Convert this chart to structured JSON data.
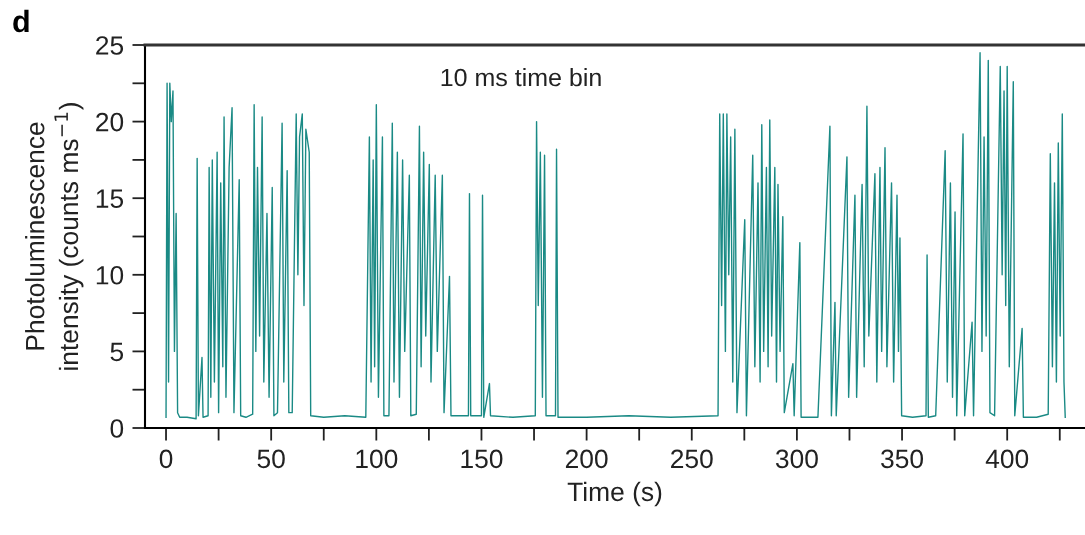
{
  "chart_data": {
    "type": "line",
    "title": "d",
    "xlabel": "Time (s)",
    "ylabel": "Photoluminescence\nintensity (counts ms$^{−1}$)",
    "annotations": [
      "10 ms time bin"
    ],
    "xlim": [
      -10,
      437
    ],
    "ylim": [
      0,
      25
    ],
    "xticks": [
      0,
      {
        "value": 25,
        "label": null
      },
      50,
      {
        "value": 75,
        "label": null
      },
      100,
      {
        "value": 125,
        "label": null
      },
      150,
      {
        "value": 175,
        "label": null
      },
      200,
      {
        "value": 225,
        "label": null
      },
      250,
      {
        "value": 275,
        "label": null
      },
      300,
      {
        "value": 325,
        "label": null
      },
      350,
      {
        "value": 375,
        "label": null
      },
      400,
      {
        "value": 425,
        "label": null
      }
    ],
    "yticks": [
      0,
      {
        "value": 2.5,
        "label": null
      },
      5,
      {
        "value": 7.5,
        "label": null
      },
      10,
      {
        "value": 12.5,
        "label": null
      },
      15,
      {
        "value": 17.5,
        "label": null
      },
      20,
      {
        "value": 22.5,
        "label": null
      },
      25
    ],
    "grid": false,
    "marker": "none",
    "line_style": "solid",
    "series": [
      {
        "color": "#1a8a85",
        "x": [
          0,
          0.5,
          1.2,
          1.8,
          2.5,
          3.3,
          4,
          4.8,
          5.5,
          6.5,
          10,
          14.3,
          14.8,
          15.4,
          17.1,
          17.6,
          20,
          20.5,
          21.3,
          22,
          23,
          24.3,
          25,
          26,
          27,
          27.6,
          28.5,
          30,
          31.4,
          32.3,
          34.8,
          35.5,
          38,
          41.2,
          41.9,
          42.7,
          43.5,
          44.5,
          45.7,
          46.5,
          48,
          49,
          50.5,
          51.3,
          53,
          55.2,
          56,
          57.6,
          58.4,
          60,
          61.9,
          62.7,
          63.5,
          64.8,
          65.6,
          66.5,
          68.1,
          68.8,
          75,
          85,
          95,
          96.7,
          97.5,
          98.5,
          99.2,
          100,
          101,
          102.9,
          103.6,
          106,
          107.6,
          108.4,
          110,
          111,
          112.5,
          113.5,
          115.7,
          116.4,
          119,
          120.5,
          121.3,
          122.5,
          123.5,
          125.2,
          126,
          128,
          129,
          131.4,
          132.2,
          134.8,
          135.5,
          140,
          143.8,
          144.3,
          144.9,
          147,
          150,
          150.5,
          151.1,
          153.8,
          154.3,
          165,
          175.6,
          176.2,
          177,
          178,
          179,
          180,
          180.7,
          185.2,
          185.7,
          186.4,
          200,
          220,
          240,
          262.5,
          263.3,
          264.2,
          265,
          266,
          266.7,
          267.6,
          268.5,
          269.5,
          270.5,
          271.5,
          275.2,
          276,
          279,
          280,
          281.5,
          282.5,
          283.3,
          284.2,
          285.5,
          286.3,
          287.1,
          288,
          289.5,
          290.3,
          291,
          292,
          293.3,
          294,
          298.1,
          298.7,
          301.4,
          302,
          310,
          315.7,
          316.4,
          318.1,
          318.7,
          323.8,
          324.6,
          327.6,
          328.4,
          331,
          332,
          333.3,
          334.2,
          337.1,
          338,
          339.5,
          340.3,
          341.9,
          342.8,
          345,
          346,
          347.6,
          348.3,
          349,
          349.8,
          355,
          361.4,
          361.9,
          362.5,
          366,
          370.5,
          371.5,
          373,
          374,
          375.2,
          376,
          379,
          379.8,
          383.3,
          384,
          387.1,
          388,
          389,
          390,
          391,
          391.8,
          394,
          396.7,
          397.6,
          398.5,
          399.3,
          400,
          401,
          402.9,
          403.6,
          407.1,
          407.7,
          414,
          419.5,
          420.5,
          421.5,
          422.5,
          423.4,
          424.3,
          425.2,
          426.2,
          427,
          427.6
        ],
        "values": [
          0.7,
          22.5,
          3,
          22.5,
          20,
          22,
          5,
          14,
          1,
          0.7,
          0.7,
          0.6,
          17.6,
          0.8,
          4.6,
          0.7,
          0.8,
          17,
          2,
          17.5,
          3,
          18,
          1,
          16,
          4,
          20.3,
          2,
          17,
          20.9,
          1,
          16.2,
          0.8,
          0.7,
          0.9,
          21.1,
          5,
          17,
          6,
          20.3,
          3,
          14,
          2,
          15.7,
          0.8,
          1,
          19.9,
          3,
          16.8,
          1,
          1,
          20.5,
          10,
          19,
          20.5,
          8,
          19.5,
          18,
          0.8,
          0.7,
          0.8,
          0.7,
          19,
          3,
          17.5,
          4,
          21.1,
          2,
          19,
          0.8,
          0.8,
          19.9,
          3,
          18,
          2,
          17.5,
          5,
          16.5,
          0.8,
          0.9,
          19.7,
          4,
          18,
          6,
          17.2,
          3,
          16.5,
          5,
          16.5,
          1,
          9.9,
          0.8,
          0.8,
          0.8,
          15.3,
          0.8,
          0.8,
          0.8,
          15.2,
          0.7,
          2.9,
          0.8,
          0.7,
          0.8,
          20,
          8,
          18,
          2,
          17.8,
          0.8,
          0.8,
          18.2,
          0.7,
          0.7,
          0.8,
          0.7,
          0.8,
          20.5,
          8,
          20.5,
          5,
          20.5,
          10,
          19,
          3,
          19.5,
          1,
          13.6,
          0.8,
          17.8,
          4,
          16,
          3,
          19.8,
          5,
          17,
          4,
          20.1,
          6,
          17,
          3,
          15.9,
          5,
          13.8,
          1,
          4.2,
          0.8,
          12.1,
          0.7,
          0.7,
          19.7,
          0.8,
          8.2,
          0.8,
          17.7,
          2,
          15.2,
          2,
          15.9,
          4,
          21,
          6,
          16.6,
          3,
          17,
          5,
          18.3,
          4,
          16,
          3,
          15.2,
          5,
          12.4,
          0.8,
          0.7,
          0.8,
          11.3,
          0.7,
          0.8,
          18.1,
          3,
          16,
          2,
          14.1,
          0.8,
          19.2,
          0.8,
          6.9,
          0.8,
          24.5,
          5,
          19,
          6,
          24,
          1,
          0.8,
          23.6,
          10,
          22,
          8,
          23.6,
          4,
          22.6,
          0.8,
          6.5,
          0.7,
          0.7,
          0.9,
          17.9,
          4,
          16,
          3,
          18.6,
          6,
          20.5,
          3,
          0.7
        ]
      }
    ]
  }
}
